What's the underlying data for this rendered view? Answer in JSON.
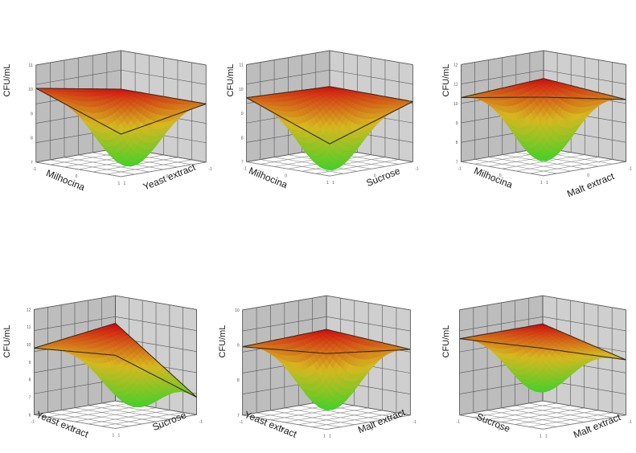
{
  "chart_data": [
    {
      "type": "surface3d",
      "zlabel": "CFU/mL",
      "xlabel": "Milhocina",
      "ylabel": "Yeast extract",
      "zticks": [
        "7",
        "8",
        "9",
        "10",
        "11"
      ],
      "xticks": [
        "-1",
        "0",
        "1"
      ],
      "yticks": [
        "-1",
        "0",
        "1"
      ],
      "corners": {
        "x0y0": 7.7,
        "x1y0": 10.0,
        "x1y1": 11.5,
        "x0y1": 10.8
      },
      "minimum": 7.2,
      "min_at": [
        0.05,
        -0.3
      ],
      "zrange": [
        7,
        12
      ]
    },
    {
      "type": "surface3d",
      "zlabel": "CFU/mL",
      "xlabel": "Milhocina",
      "ylabel": "Sucrose",
      "zticks": [
        "7",
        "8",
        "9",
        "10",
        "11"
      ],
      "xticks": [
        "-1",
        "0",
        "1"
      ],
      "yticks": [
        "-1",
        "0",
        "1"
      ],
      "corners": {
        "x0y0": 7.2,
        "x1y0": 10.1,
        "x1y1": 11.6,
        "x0y1": 10.3
      },
      "minimum": 7.0,
      "min_at": [
        -0.3,
        -0.3
      ],
      "zrange": [
        7,
        12
      ]
    },
    {
      "type": "surface3d",
      "zlabel": "CFU/mL",
      "xlabel": "Milhocina",
      "ylabel": "Malt extract",
      "zticks": [
        "7",
        "8",
        "9",
        "10",
        "11",
        "12"
      ],
      "xticks": [
        "-1",
        "0",
        "1"
      ],
      "yticks": [
        "-1",
        "0",
        "1"
      ],
      "corners": {
        "x0y0": 9.6,
        "x1y0": 10.2,
        "x1y1": 12.0,
        "x0y1": 10.3
      },
      "minimum": 7.5,
      "min_at": [
        0.0,
        0.0
      ],
      "zrange": [
        7,
        12
      ]
    },
    {
      "type": "surface3d",
      "zlabel": "CFU/mL",
      "xlabel": "Yeast extract",
      "ylabel": "Sucrose",
      "zticks": [
        "6",
        "7",
        "8",
        "9",
        "10",
        "11",
        "12"
      ],
      "xticks": [
        "-1",
        "0",
        "1"
      ],
      "yticks": [
        "-1",
        "0",
        "1"
      ],
      "corners": {
        "x0y0": 8.6,
        "x1y0": 7.0,
        "x1y1": 12.0,
        "x0y1": 9.8
      },
      "minimum": 6.8,
      "min_at": [
        0.3,
        -0.5
      ],
      "zrange": [
        6,
        12
      ]
    },
    {
      "type": "surface3d",
      "zlabel": "CFU/mL",
      "xlabel": "Yeast extract",
      "ylabel": "Malt extract",
      "zticks": [
        "7",
        "8",
        "9",
        "10"
      ],
      "xticks": [
        "-1",
        "0",
        "1"
      ],
      "yticks": [
        "-1",
        "0",
        "1"
      ],
      "corners": {
        "x0y0": 8.8,
        "x1y0": 9.5,
        "x1y1": 10.8,
        "x0y1": 9.6
      },
      "minimum": 7.5,
      "min_at": [
        0.1,
        0.0
      ],
      "zrange": [
        7,
        11
      ]
    },
    {
      "type": "surface3d",
      "zlabel": "CFU/mL",
      "xlabel": "Sucrose",
      "ylabel": "Malt extract",
      "zticks": [],
      "xticks": [
        "-1",
        "0",
        "1"
      ],
      "yticks": [
        "-1",
        "0",
        "1"
      ],
      "corners": {
        "x0y0": 9.0,
        "x1y0": 9.1,
        "x1y1": 11.0,
        "x0y1": 9.9
      },
      "minimum": 8.0,
      "min_at": [
        -0.4,
        -0.2
      ],
      "zrange": [
        7,
        11
      ]
    }
  ],
  "colors": {
    "low": "#3fd12a",
    "mid": "#d6b820",
    "high": "#d01010",
    "edge": "#3a2a1a",
    "wall": "#cfcfcf",
    "grid": "#555555",
    "floor": "#ffffff"
  }
}
